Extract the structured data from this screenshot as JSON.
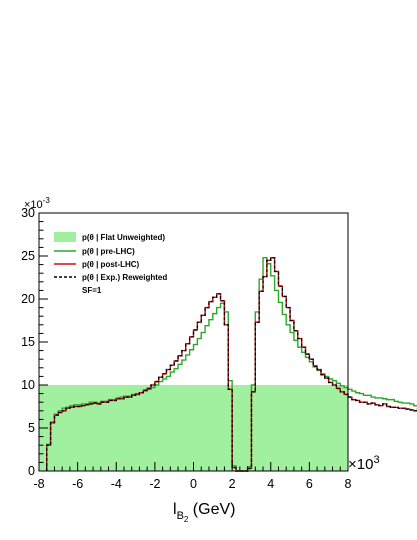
{
  "chart_data": {
    "type": "histogram",
    "x_axis": {
      "label_main": "l",
      "label_sub": "B",
      "label_subsub": "2",
      "label_unit": " (GeV)",
      "range": [
        -8,
        8
      ],
      "ticks": [
        "-8",
        "-6",
        "-4",
        "-2",
        "0",
        "2",
        "4",
        "6",
        "8"
      ],
      "multiplier_base": "×10",
      "multiplier_exp": "3"
    },
    "y_axis": {
      "range": [
        0,
        30
      ],
      "ticks": [
        "0",
        "5",
        "10",
        "15",
        "20",
        "25",
        "30"
      ],
      "multiplier_base": "×10",
      "multiplier_exp": "-3"
    },
    "legend": {
      "position": "top-left",
      "entries": [
        {
          "label": "p(θ | Flat Unweighted)",
          "style": "fill",
          "color": "#a0f0a0"
        },
        {
          "label": "p(θ | pre-LHC)",
          "style": "line",
          "color": "#2aa82a"
        },
        {
          "label": "p(θ | post-LHC)",
          "style": "line",
          "color": "#cc1111"
        },
        {
          "label": "p(θ | Exp.) Reweighted",
          "style": "dashed",
          "color": "#000000"
        }
      ],
      "note": "SF=1"
    },
    "bins": {
      "start": -7.6,
      "end": 7.6,
      "width": 0.2
    },
    "flat_level": 10,
    "series": [
      {
        "name": "p(θ | post-LHC)",
        "color": "#cc1111",
        "values": [
          3.0,
          5.6,
          6.5,
          6.8,
          7.0,
          7.3,
          7.4,
          7.5,
          7.5,
          7.6,
          7.7,
          7.8,
          7.9,
          7.8,
          8.0,
          8.0,
          8.2,
          8.2,
          8.4,
          8.4,
          8.6,
          8.6,
          8.8,
          8.9,
          9.1,
          9.4,
          9.6,
          10.0,
          10.4,
          10.9,
          11.3,
          11.8,
          12.3,
          12.8,
          13.4,
          14.0,
          14.8,
          15.6,
          16.4,
          17.3,
          18.1,
          19.0,
          19.7,
          20.2,
          20.6,
          19.8,
          17.0,
          9.5,
          0.4,
          0.0,
          0.0,
          0.0,
          0.3,
          9.2,
          17.3,
          20.9,
          22.6,
          24.5,
          24.8,
          23.2,
          21.5,
          20.3,
          19.0,
          17.5,
          16.3,
          15.4,
          14.4,
          13.6,
          13.0,
          12.2,
          11.8,
          11.2,
          10.8,
          10.3,
          10.0,
          9.6,
          9.2,
          8.9,
          8.6,
          8.3,
          8.2,
          8.0,
          8.0,
          7.8,
          7.9,
          7.7,
          7.6,
          7.8,
          7.5,
          7.4,
          7.4,
          7.3,
          7.3,
          7.2,
          7.1,
          7.0,
          7.2,
          6.9,
          6.8,
          6.6,
          6.4,
          6.3,
          6.1,
          5.9,
          5.6,
          5.3,
          4.9,
          4.2,
          3.6,
          2.8,
          2.0,
          1.2,
          0.7,
          0.3,
          0.1,
          0.0
        ]
      },
      {
        "name": "p(θ | pre-LHC)",
        "color": "#2aa82a",
        "values": [
          3.1,
          5.7,
          6.6,
          7.0,
          7.3,
          7.4,
          7.6,
          7.7,
          7.7,
          7.8,
          7.8,
          8.0,
          8.0,
          7.9,
          8.1,
          8.1,
          8.3,
          8.3,
          8.5,
          8.6,
          8.7,
          8.7,
          8.9,
          9.0,
          9.1,
          9.3,
          9.5,
          9.7,
          10.0,
          10.4,
          10.7,
          11.0,
          11.5,
          11.9,
          12.4,
          12.9,
          13.5,
          14.1,
          14.7,
          15.4,
          16.1,
          16.9,
          17.6,
          18.3,
          19.0,
          19.5,
          18.5,
          10.5,
          0.6,
          0.0,
          0.0,
          0.0,
          0.5,
          10.0,
          18.5,
          22.3,
          24.8,
          24.1,
          22.7,
          21.0,
          19.6,
          18.2,
          17.0,
          16.1,
          15.2,
          14.4,
          13.8,
          13.2,
          12.7,
          12.1,
          11.7,
          11.3,
          11.0,
          10.7,
          10.5,
          10.2,
          9.9,
          9.7,
          9.5,
          9.3,
          9.1,
          9.0,
          8.8,
          8.8,
          8.6,
          8.5,
          8.5,
          8.4,
          8.3,
          8.3,
          8.1,
          8.0,
          7.9,
          7.9,
          7.8,
          7.6,
          7.5,
          7.4,
          7.2,
          7.1,
          6.9,
          6.7,
          6.5,
          6.3,
          6.0,
          5.7,
          5.2,
          4.5,
          3.8,
          2.9,
          2.1,
          1.3,
          0.7,
          0.3,
          0.1,
          0.0
        ]
      },
      {
        "name": "p(θ | Exp.) Reweighted",
        "color": "#000000",
        "dashed": true,
        "values": [
          3.0,
          5.6,
          6.5,
          6.8,
          7.0,
          7.3,
          7.4,
          7.5,
          7.5,
          7.6,
          7.7,
          7.8,
          7.9,
          7.8,
          8.0,
          8.0,
          8.2,
          8.2,
          8.4,
          8.4,
          8.6,
          8.6,
          8.8,
          8.9,
          9.1,
          9.4,
          9.6,
          10.0,
          10.4,
          10.9,
          11.3,
          11.8,
          12.3,
          12.8,
          13.4,
          14.0,
          14.8,
          15.6,
          16.4,
          17.3,
          18.1,
          19.0,
          19.7,
          20.2,
          20.6,
          19.8,
          17.0,
          9.5,
          0.4,
          0.0,
          0.0,
          0.0,
          0.3,
          9.2,
          17.3,
          20.9,
          22.6,
          24.5,
          24.8,
          23.2,
          21.5,
          20.3,
          19.0,
          17.5,
          16.3,
          15.4,
          14.4,
          13.6,
          13.0,
          12.2,
          11.8,
          11.2,
          10.8,
          10.3,
          10.0,
          9.6,
          9.2,
          8.9,
          8.6,
          8.3,
          8.2,
          8.0,
          8.0,
          7.8,
          7.9,
          7.7,
          7.6,
          7.8,
          7.5,
          7.4,
          7.4,
          7.3,
          7.3,
          7.2,
          7.1,
          7.0,
          7.2,
          6.9,
          6.8,
          6.6,
          6.4,
          6.3,
          6.1,
          5.9,
          5.6,
          5.3,
          4.9,
          4.2,
          3.6,
          2.8,
          2.0,
          1.2,
          0.7,
          0.3,
          0.1,
          0.0
        ]
      }
    ]
  }
}
